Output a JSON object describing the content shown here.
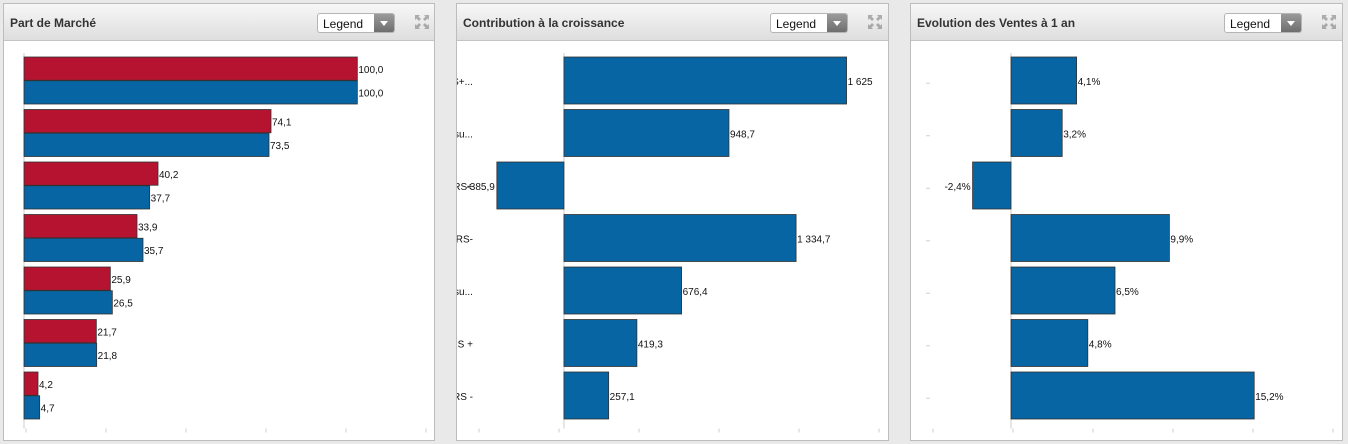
{
  "panels": [
    {
      "title": "Part de Marché",
      "legend_label": "Legend",
      "icons": {
        "expand": "expand-icon",
        "dropdown": "chevron-down-icon"
      }
    },
    {
      "title": "Contribution à la croissance",
      "legend_label": "Legend",
      "icons": {
        "expand": "expand-icon",
        "dropdown": "chevron-down-icon"
      }
    },
    {
      "title": "Evolution des Ventes à 1 an",
      "legend_label": "Legend",
      "icons": {
        "expand": "expand-icon",
        "dropdown": "chevron-down-icon"
      }
    }
  ],
  "colors": {
    "red": "#b5132f",
    "blue": "#0665a2"
  },
  "chart_data": [
    {
      "type": "bar",
      "orientation": "horizontal",
      "categories": [
        "",
        "",
        "",
        "",
        "",
        "",
        ""
      ],
      "series": [
        {
          "values": [
            100.0,
            74.1,
            40.2,
            33.9,
            25.9,
            21.7,
            4.2
          ],
          "labels": [
            "100,0",
            "74,1",
            "40,2",
            "33,9",
            "25,9",
            "21,7",
            "4,2"
          ],
          "color": "#b5132f"
        },
        {
          "values": [
            100.0,
            73.5,
            37.7,
            35.7,
            26.5,
            21.8,
            4.7
          ],
          "labels": [
            "100,0",
            "73,5",
            "37,7",
            "35,7",
            "26,5",
            "21,8",
            "4,7"
          ],
          "color": "#0665a2"
        }
      ],
      "xlim": [
        0,
        120
      ],
      "grid": false
    },
    {
      "type": "bar",
      "orientation": "horizontal",
      "categories": [
        "Total HYPERS+...",
        "HYPERS Censu...",
        "HYPERS+",
        "HYPERS-",
        "SUPERS Censu...",
        "SUPERS +",
        "SUPERS -"
      ],
      "series": [
        {
          "values": [
            1625,
            948.7,
            -385.9,
            1334.7,
            676.4,
            419.3,
            257.1
          ],
          "labels": [
            "1 625",
            "948,7",
            "-385,9",
            "1 334,7",
            "676,4",
            "419,3",
            "257,1"
          ],
          "color": "#0665a2"
        }
      ],
      "xlim": [
        -500,
        1800
      ],
      "grid": false
    },
    {
      "type": "bar",
      "orientation": "horizontal",
      "categories": [
        "",
        "",
        "",
        "",
        "",
        "",
        ""
      ],
      "series": [
        {
          "values": [
            4.1,
            3.2,
            -2.4,
            9.9,
            6.5,
            4.8,
            15.2
          ],
          "labels": [
            "4,1%",
            "3,2%",
            "-2,4%",
            "9,9%",
            "6,5%",
            "4,8%",
            "15,2%"
          ],
          "color": "#0665a2"
        }
      ],
      "xlim": [
        -5,
        20
      ],
      "grid": false
    }
  ]
}
